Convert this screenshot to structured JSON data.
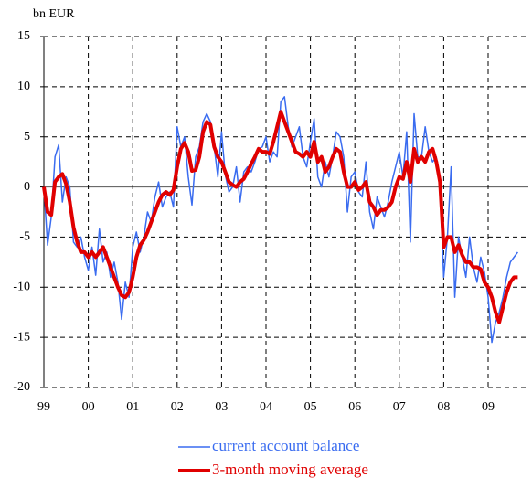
{
  "chart_data": {
    "type": "line",
    "y_label": "bn EUR",
    "categories": [
      "99",
      null,
      null,
      null,
      null,
      null,
      null,
      null,
      null,
      null,
      null,
      null,
      "00",
      null,
      null,
      null,
      null,
      null,
      null,
      null,
      null,
      null,
      null,
      null,
      "01",
      null,
      null,
      null,
      null,
      null,
      null,
      null,
      null,
      null,
      null,
      null,
      "02",
      null,
      null,
      null,
      null,
      null,
      null,
      null,
      null,
      null,
      null,
      null,
      "03",
      null,
      null,
      null,
      null,
      null,
      null,
      null,
      null,
      null,
      null,
      null,
      "04",
      null,
      null,
      null,
      null,
      null,
      null,
      null,
      null,
      null,
      null,
      null,
      "05",
      null,
      null,
      null,
      null,
      null,
      null,
      null,
      null,
      null,
      null,
      null,
      "06",
      null,
      null,
      null,
      null,
      null,
      null,
      null,
      null,
      null,
      null,
      null,
      "07",
      null,
      null,
      null,
      null,
      null,
      null,
      null,
      null,
      null,
      null,
      null,
      "08",
      null,
      null,
      null,
      null,
      null,
      null,
      null,
      null,
      null,
      null,
      null,
      "09",
      null,
      null,
      null,
      null,
      null,
      null,
      null,
      null
    ],
    "series": [
      {
        "name": "current account balance",
        "color": "#3a6cf0",
        "width": 1.5,
        "values": [
          0,
          -5.8,
          -3,
          3,
          4.2,
          -1.5,
          1,
          0,
          -5.5,
          -6,
          -5,
          -7,
          -8.3,
          -6,
          -8.8,
          -4.2,
          -7.5,
          -6.5,
          -9,
          -7.5,
          -9.5,
          -13.2,
          -9.5,
          -11,
          -6,
          -4.5,
          -6.5,
          -5,
          -2.5,
          -3.5,
          -1,
          0.5,
          -2,
          -1,
          -0.5,
          -2,
          6,
          4,
          5,
          1,
          -1.8,
          3,
          4,
          6.5,
          7.3,
          6.5,
          4,
          1,
          5.5,
          1.2,
          -0.5,
          0,
          2,
          -1.5,
          1.5,
          2,
          1.5,
          2.5,
          3.8,
          4,
          5,
          2.5,
          3.5,
          3,
          8.5,
          9,
          6,
          4,
          5,
          6,
          3,
          2,
          4.5,
          6.8,
          1,
          0,
          2.5,
          1,
          3,
          5.5,
          5,
          3,
          -2.5,
          1,
          1.5,
          -0.5,
          -1,
          2.5,
          -2.5,
          -4.2,
          -1,
          -2,
          -3,
          -1.5,
          0.5,
          2,
          3.5,
          1,
          5.5,
          -5.5,
          7.3,
          3,
          3,
          6,
          3.5,
          2.5,
          3,
          0,
          -9,
          -5,
          2,
          -11,
          -5,
          -7,
          -9,
          -5,
          -8,
          -9.5,
          -7,
          -8.5,
          -11,
          -15.5,
          -13.5,
          -12.5,
          -11,
          -9,
          -7.5,
          -7,
          -6.5
        ]
      },
      {
        "name": "3-month moving average",
        "color": "#e00000",
        "width": 4,
        "values": [
          0,
          -2.5,
          -2.8,
          0.5,
          1,
          1.3,
          0.3,
          -1.5,
          -4,
          -5.5,
          -6.5,
          -6.5,
          -7,
          -6.5,
          -7,
          -6.5,
          -6,
          -7,
          -8,
          -9,
          -10,
          -10.8,
          -11,
          -10.5,
          -9,
          -7,
          -5.8,
          -5.3,
          -4.5,
          -3.5,
          -2.5,
          -1.5,
          -0.8,
          -0.5,
          -0.8,
          -0.3,
          2,
          3.8,
          4.4,
          3.5,
          1.6,
          1.7,
          3,
          5.5,
          6.5,
          6.2,
          4,
          3,
          2.5,
          1.5,
          0.5,
          0.2,
          0,
          0.5,
          0.8,
          1.5,
          2.3,
          3,
          3.8,
          3.5,
          3.5,
          3.3,
          4.5,
          6,
          7.5,
          6.5,
          5.5,
          4.5,
          3.5,
          3.3,
          3,
          3.5,
          3,
          4.5,
          2.5,
          3,
          1.5,
          2,
          3,
          3.8,
          3.5,
          1.5,
          0,
          0,
          0.5,
          -0.3,
          0,
          0.5,
          -1.5,
          -2,
          -2.8,
          -2.3,
          -2.3,
          -2,
          -1.5,
          0,
          1,
          0.8,
          2.5,
          0.5,
          3.8,
          2.5,
          3,
          2.5,
          3.5,
          3.8,
          2.5,
          0.5,
          -6,
          -5,
          -5,
          -6.5,
          -5.8,
          -6.8,
          -7.5,
          -7.5,
          -8,
          -8,
          -8.2,
          -9.5,
          -10,
          -11,
          -12.5,
          -13.5,
          -12,
          -10.5,
          -9.5,
          -9,
          -9
        ]
      }
    ],
    "ylim": [
      -20,
      15
    ],
    "yticks": [
      -20,
      -15,
      -10,
      -5,
      0,
      5,
      10,
      15
    ],
    "grid": true
  }
}
